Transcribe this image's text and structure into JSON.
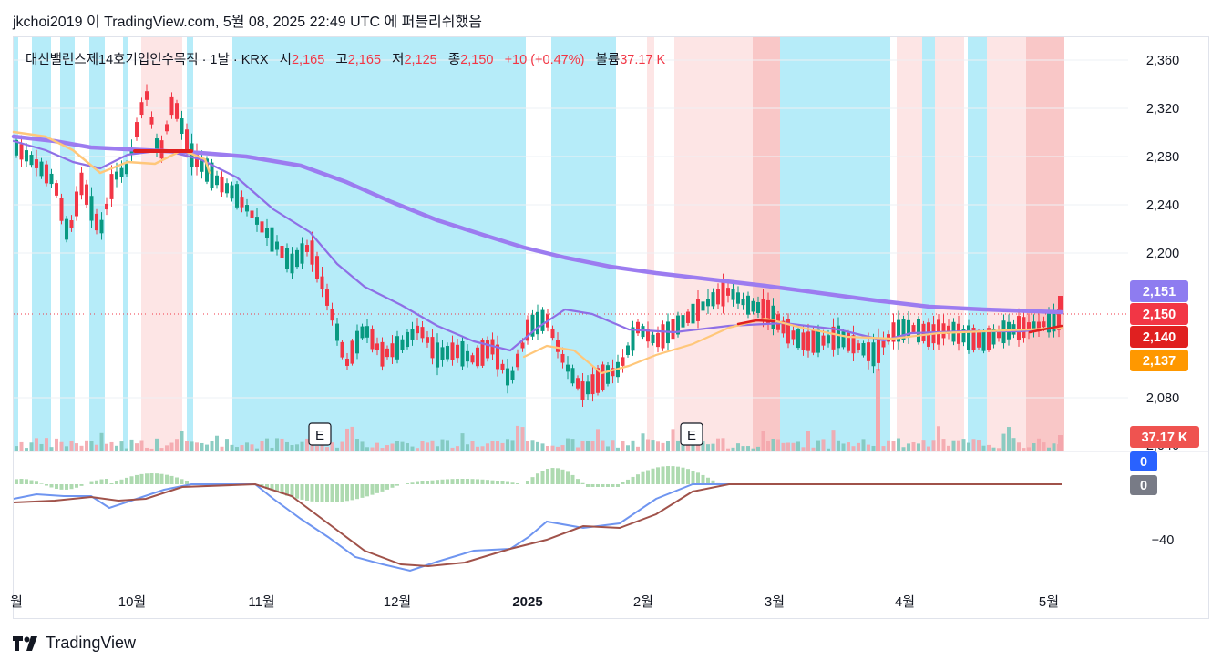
{
  "header": {
    "publish_line": "jkchoi2019 이 TradingView.com, 5월 08, 2025 22:49 UTC 에 퍼블리쉬했음"
  },
  "legend": {
    "symbol": "대신밸런스제14호기업인수목적 · 1날 · KRX",
    "open_label": "시",
    "open": "2,165",
    "high_label": "고",
    "high": "2,165",
    "low_label": "저",
    "low": "2,125",
    "close_label": "종",
    "close": "2,150",
    "change": "+10 (+0.47%)",
    "volume_label": "볼륨",
    "volume": "37.17 K"
  },
  "footer": {
    "brand": "TradingView"
  },
  "colors": {
    "up": "#089981",
    "down": "#f23645",
    "cyan_band": "#b2ebf9",
    "pink_band": "#fde4e4",
    "red_band": "#f9c4c4",
    "ema_long": "#9c7cf0",
    "ema_mid": "#8e6fe6",
    "ema_short": "#ffc77a",
    "macd": "#6f95f0",
    "signal": "#a0524a"
  },
  "chart_data": {
    "type": "candlestick",
    "price_axis_ticks": [
      "2,360",
      "2,320",
      "2,280",
      "2,240",
      "2,200",
      "2,080",
      "2,040"
    ],
    "price_range": [
      2040,
      2380
    ],
    "macd_axis_ticks": [
      "−40"
    ],
    "x_labels": [
      "월",
      "10월",
      "11월",
      "12월",
      "2025",
      "2월",
      "3월",
      "4월",
      "5월"
    ],
    "price_badges": [
      {
        "label": "2,151",
        "color": "#8e7cf0"
      },
      {
        "label": "2,150",
        "color": "#f23645"
      },
      {
        "label": "2,140",
        "color": "#e02020"
      },
      {
        "label": "2,137",
        "color": "#ff9800"
      },
      {
        "label": "37.17 K",
        "color": "#ef5350"
      }
    ],
    "macd_badges": [
      {
        "label": "0",
        "color": "#2962ff"
      },
      {
        "label": "0",
        "color": "#787b86"
      }
    ],
    "earnings_markers": [
      "E",
      "E"
    ],
    "last_close": 2150,
    "series": [
      {
        "name": "EMA long",
        "values": [
          2296,
          2294,
          2290,
          2285,
          2281,
          2275,
          2262,
          2245,
          2229,
          2213,
          2200,
          2191,
          2183,
          2173,
          2166,
          2160,
          2156,
          2153,
          2151,
          2151
        ]
      },
      {
        "name": "EMA mid",
        "values": [
          2293,
          2289,
          2283,
          2282,
          2282,
          2262,
          2236,
          2207,
          2178,
          2150,
          2133,
          2123,
          2130,
          2137,
          2143,
          2145,
          2142,
          2138,
          2140,
          2140
        ]
      }
    ]
  }
}
